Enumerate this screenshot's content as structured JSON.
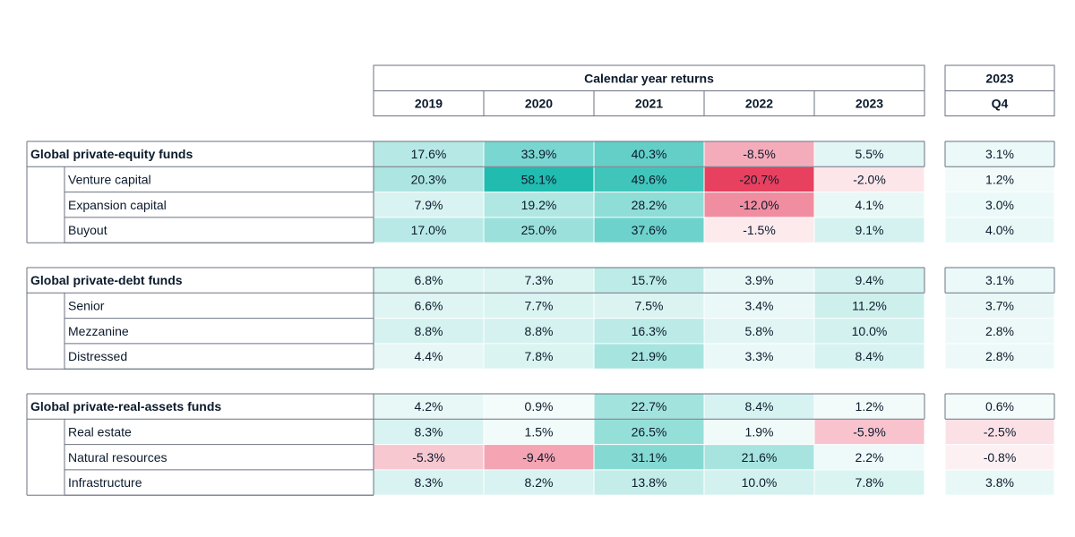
{
  "chart_data": {
    "type": "heatmap",
    "column_group_label": "Calendar year returns",
    "columns": [
      "2019",
      "2020",
      "2021",
      "2022",
      "2023"
    ],
    "extra_column": {
      "top": "2023",
      "bottom": "Q4"
    },
    "colors": {
      "positive": "#22bbb0",
      "negative": "#e8405f",
      "border": "#6b7280"
    },
    "groups": [
      {
        "name": "Global private-equity funds",
        "values": [
          17.6,
          33.9,
          40.3,
          -8.5,
          5.5
        ],
        "q4": 3.1,
        "rows": [
          {
            "name": "Venture capital",
            "values": [
              20.3,
              58.1,
              49.6,
              -20.7,
              -2.0
            ],
            "q4": 1.2
          },
          {
            "name": "Expansion capital",
            "values": [
              7.9,
              19.2,
              28.2,
              -12.0,
              4.1
            ],
            "q4": 3.0
          },
          {
            "name": "Buyout",
            "values": [
              17.0,
              25.0,
              37.6,
              -1.5,
              9.1
            ],
            "q4": 4.0
          }
        ]
      },
      {
        "name": "Global private-debt funds",
        "values": [
          6.8,
          7.3,
          15.7,
          3.9,
          9.4
        ],
        "q4": 3.1,
        "rows": [
          {
            "name": "Senior",
            "values": [
              6.6,
              7.7,
              7.5,
              3.4,
              11.2
            ],
            "q4": 3.7
          },
          {
            "name": "Mezzanine",
            "values": [
              8.8,
              8.8,
              16.3,
              5.8,
              10.0
            ],
            "q4": 2.8
          },
          {
            "name": "Distressed",
            "values": [
              4.4,
              7.8,
              21.9,
              3.3,
              8.4
            ],
            "q4": 2.8
          }
        ]
      },
      {
        "name": "Global private-real-assets funds",
        "values": [
          4.2,
          0.9,
          22.7,
          8.4,
          1.2
        ],
        "q4": 0.6,
        "rows": [
          {
            "name": "Real estate",
            "values": [
              8.3,
              1.5,
              26.5,
              1.9,
              -5.9
            ],
            "q4": -2.5
          },
          {
            "name": "Natural resources",
            "values": [
              -5.3,
              -9.4,
              31.1,
              21.6,
              2.2
            ],
            "q4": -0.8
          },
          {
            "name": "Infrastructure",
            "values": [
              8.3,
              8.2,
              13.8,
              10.0,
              7.8
            ],
            "q4": 3.8
          }
        ]
      }
    ]
  }
}
